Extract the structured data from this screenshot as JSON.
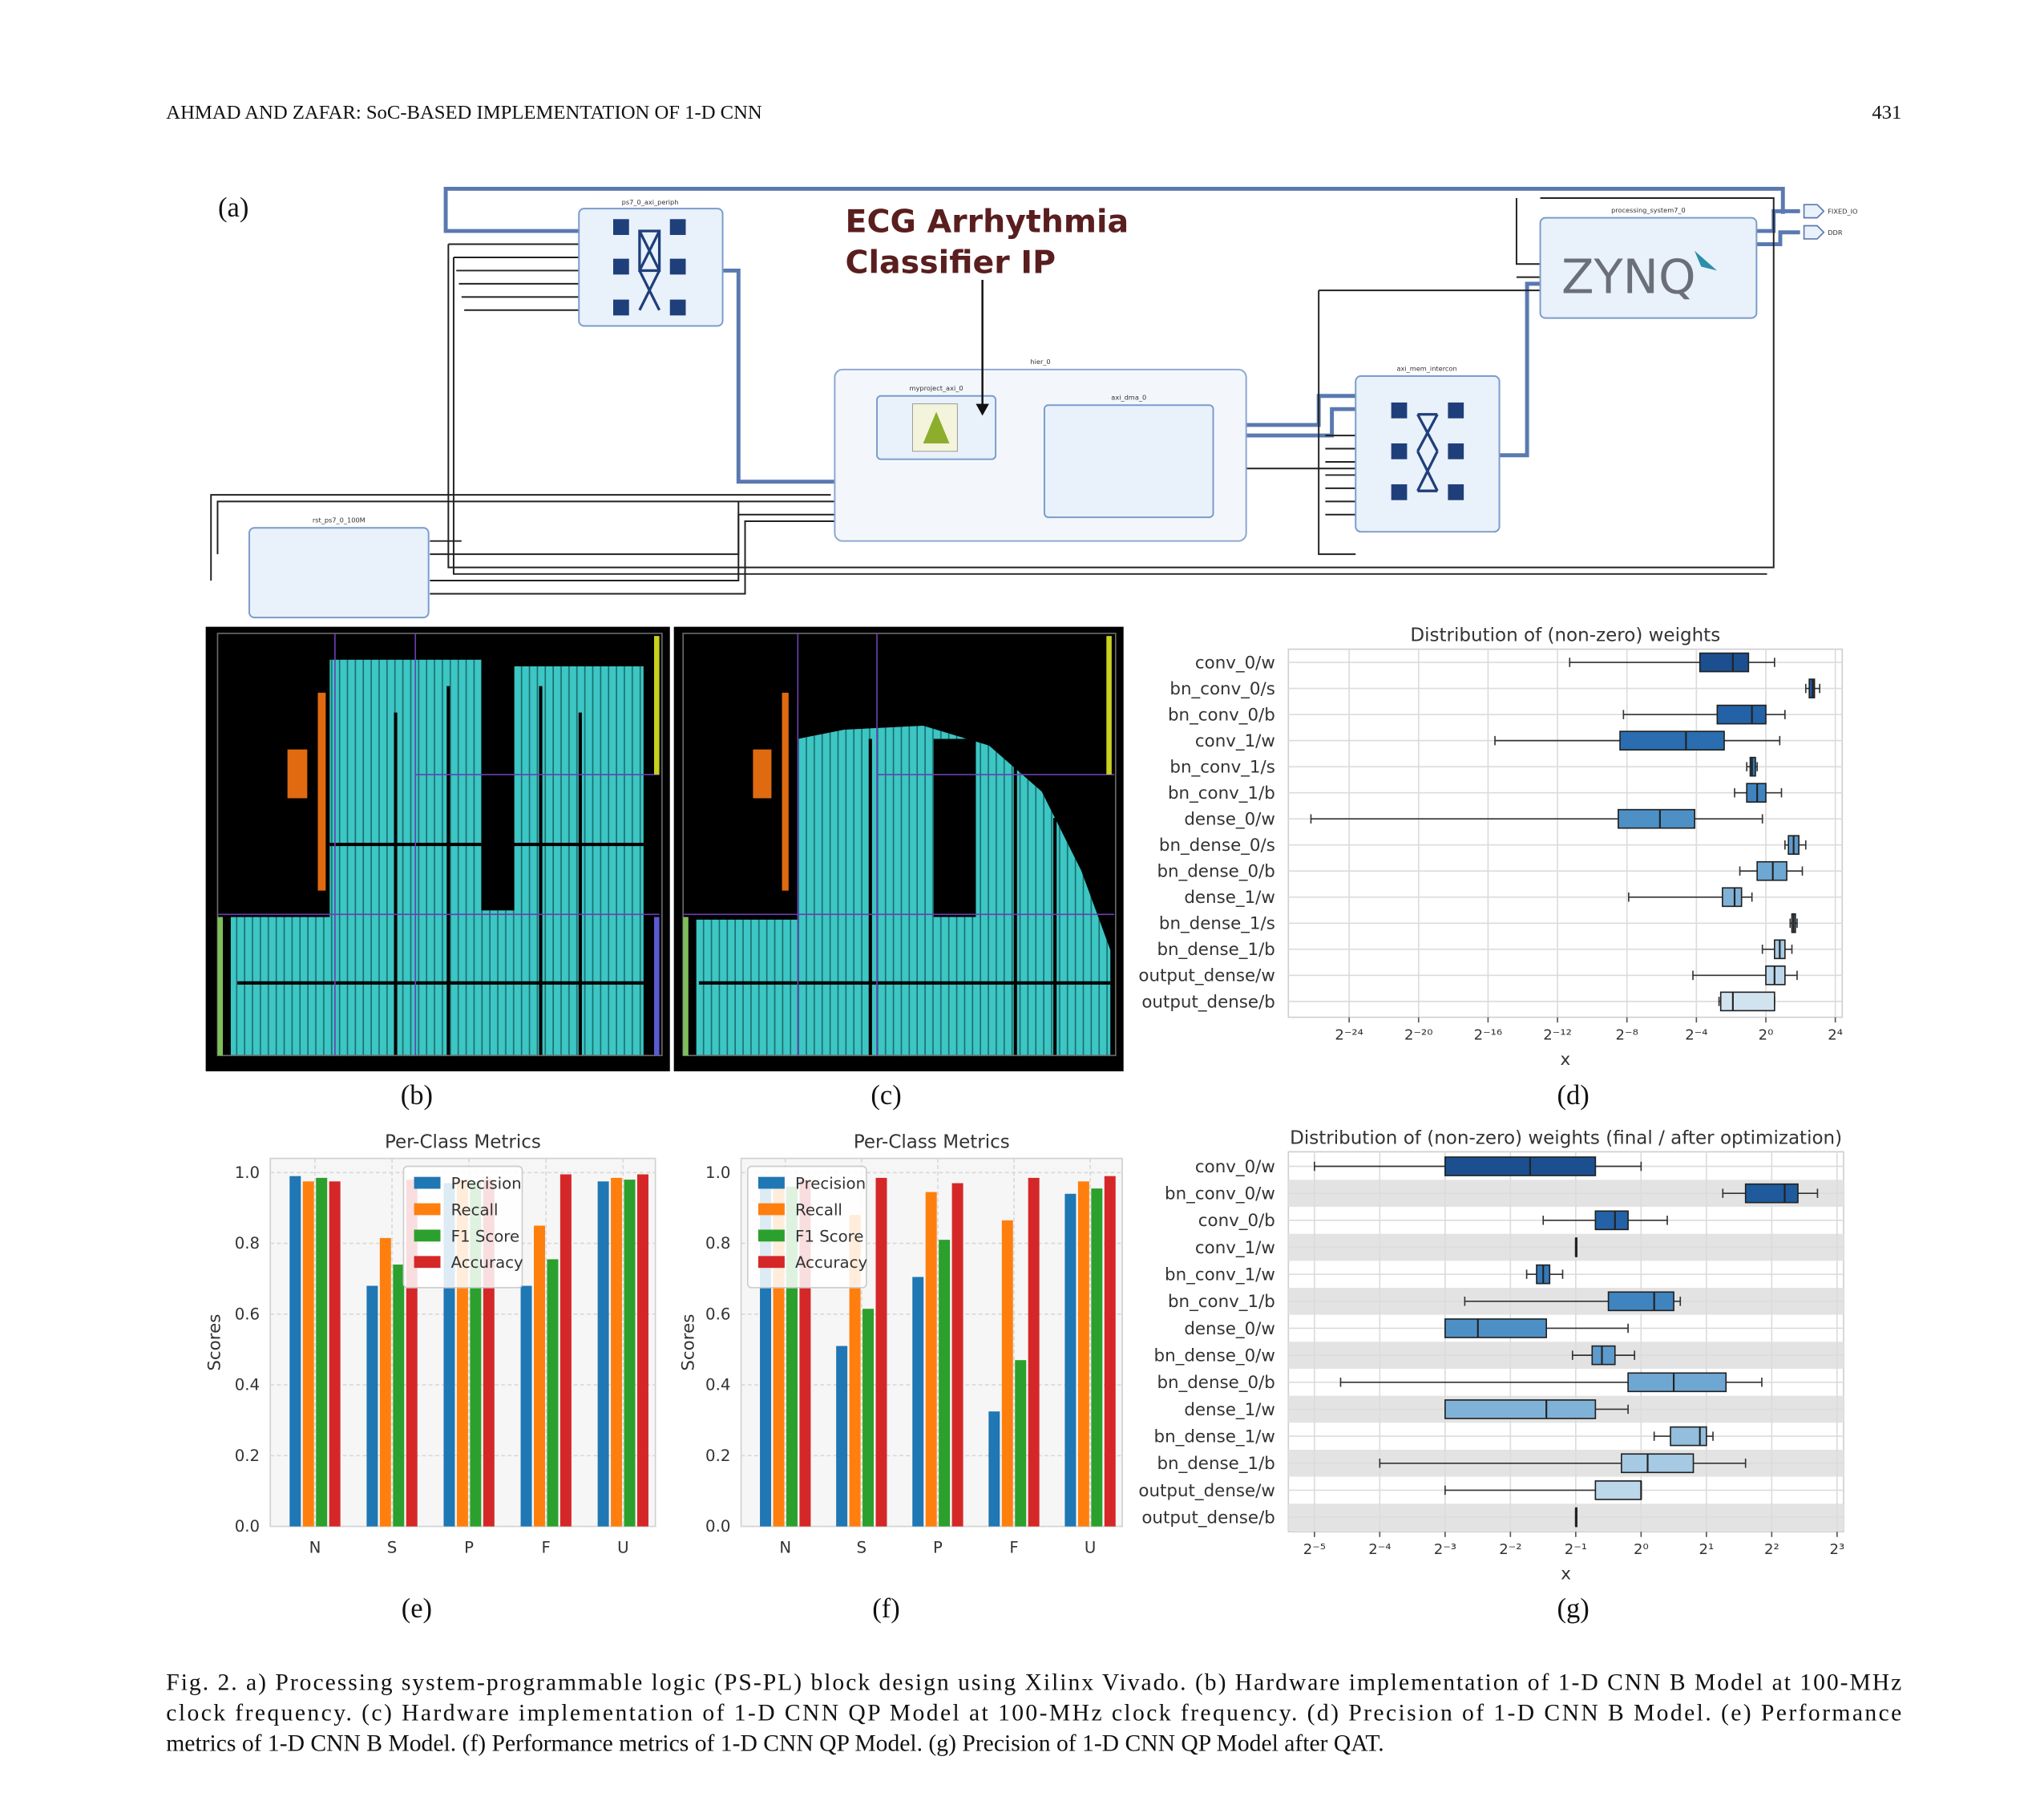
{
  "header": {
    "running_title": "AHMAD AND ZAFAR: SoC-BASED IMPLEMENTATION OF 1-D CNN",
    "page_number": "431"
  },
  "panel_labels": [
    "(a)",
    "(b)",
    "(c)",
    "(d)",
    "(e)",
    "(f)",
    "(g)"
  ],
  "diagram": {
    "callout_lines": [
      "ECG Arrhythmia",
      "Classifier IP"
    ],
    "blocks": [
      "ps7_0_axi_periph",
      "processing_system7_0",
      "hier_0",
      "myproject_axi_0",
      "axi_dma_0",
      "axi_mem_intercon",
      "rst_ps7_0_100M"
    ],
    "logo": "ZYNQ",
    "ports": [
      "FIXED_IO",
      "DDR"
    ]
  },
  "chart_data": [
    {
      "type": "box",
      "title": "Distribution of (non-zero) weights",
      "x_label": "x",
      "xscale": "log",
      "grid": true,
      "row_shading": false,
      "categories": [
        "conv_0/w",
        "bn_conv_0/s",
        "bn_conv_0/b",
        "conv_1/w",
        "bn_conv_1/s",
        "bn_conv_1/b",
        "dense_0/w",
        "bn_dense_0/s",
        "bn_dense_0/b",
        "dense_1/w",
        "bn_dense_1/s",
        "bn_dense_1/b",
        "output_dense/w",
        "output_dense/b"
      ],
      "whisker_low": [
        0.000397,
        4.92,
        0.0034,
        2.01e-05,
        0.4665,
        0.287,
        1.297e-08,
        2.144,
        0.354,
        0.00419,
        2.64,
        0.871,
        0.0544,
        0.154
      ],
      "q1": [
        0.0718,
        5.66,
        0.1436,
        0.00296,
        0.536,
        0.4665,
        0.00276,
        2.462,
        0.707,
        0.177,
        2.83,
        1.414,
        1,
        0.165
      ],
      "median": [
        0.268,
        6.5,
        0.574,
        0.04125,
        0.574,
        0.707,
        0.01458,
        3.03,
        1.32,
        0.287,
        3.03,
        1.741,
        1.414,
        0.268
      ],
      "q3": [
        0.5,
        6.96,
        1,
        0.1895,
        0.66,
        1,
        0.0583,
        3.73,
        2.3,
        0.379,
        3.25,
        2.144,
        2.144,
        1.414
      ],
      "whisker_high": [
        1.414,
        8.58,
        2.144,
        1.741,
        0.707,
        1.866,
        0.871,
        4.92,
        4.29,
        0.574,
        3.48,
        2.83,
        3.48,
        1.414
      ],
      "colors": [
        "#1b4f8f",
        "#1f5a9c",
        "#2362a6",
        "#2a6db0",
        "#3479b8",
        "#3f84bf",
        "#4d90c6",
        "#5d9bcc",
        "#6ea7d2",
        "#80b2d8",
        "#93bede",
        "#a7cae4",
        "#bcd6ea",
        "#d2e3f0"
      ],
      "xlim": [
        5.27e-09,
        21.1
      ],
      "xticks": [
        {
          "value": 5.960464477539063e-08,
          "label": "2⁻²⁴"
        },
        {
          "value": 9.5367431640625e-07,
          "label": "2⁻²⁰"
        },
        {
          "value": 1.52587890625e-05,
          "label": "2⁻¹⁶"
        },
        {
          "value": 0.000244140625,
          "label": "2⁻¹²"
        },
        {
          "value": 0.00390625,
          "label": "2⁻⁸"
        },
        {
          "value": 0.0625,
          "label": "2⁻⁴"
        },
        {
          "value": 1,
          "label": "2⁰"
        },
        {
          "value": 16,
          "label": "2⁴"
        }
      ]
    },
    {
      "type": "bar",
      "title": "Per-Class Metrics",
      "y_label": "Scores",
      "grid": true,
      "legend": "upper center",
      "categories": [
        "N",
        "S",
        "P",
        "F",
        "U"
      ],
      "series": [
        {
          "name": "Precision",
          "color": "#1f77b4",
          "values": [
            0.99,
            0.68,
            0.97,
            0.68,
            0.975
          ]
        },
        {
          "name": "Recall",
          "color": "#ff7f0e",
          "values": [
            0.975,
            0.815,
            0.98,
            0.85,
            0.985
          ]
        },
        {
          "name": "F1 Score",
          "color": "#2ca02c",
          "values": [
            0.985,
            0.74,
            0.975,
            0.755,
            0.98
          ]
        },
        {
          "name": "Accuracy",
          "color": "#d62728",
          "values": [
            0.975,
            0.98,
            0.98,
            0.995,
            0.995
          ]
        }
      ],
      "ylim": [
        0,
        1.04
      ],
      "yticks": [
        {
          "value": 0,
          "label": "0.0"
        },
        0.2,
        0.4,
        0.6,
        0.8,
        {
          "value": 1,
          "label": "1.0"
        }
      ]
    },
    {
      "type": "bar",
      "title": "Per-Class Metrics",
      "y_label": "Scores",
      "grid": true,
      "legend": "upper left",
      "categories": [
        "N",
        "S",
        "P",
        "F",
        "U"
      ],
      "series": [
        {
          "name": "Precision",
          "color": "#1f77b4",
          "values": [
            0.97,
            0.51,
            0.705,
            0.325,
            0.94
          ]
        },
        {
          "name": "Recall",
          "color": "#ff7f0e",
          "values": [
            0.96,
            0.88,
            0.945,
            0.865,
            0.975
          ]
        },
        {
          "name": "F1 Score",
          "color": "#2ca02c",
          "values": [
            0.96,
            0.615,
            0.81,
            0.47,
            0.955
          ]
        },
        {
          "name": "Accuracy",
          "color": "#d62728",
          "values": [
            0.98,
            0.985,
            0.97,
            0.985,
            0.99
          ]
        }
      ],
      "ylim": [
        0,
        1.04
      ],
      "yticks": [
        {
          "value": 0,
          "label": "0.0"
        },
        0.2,
        0.4,
        0.6,
        0.8,
        {
          "value": 1,
          "label": "1.0"
        }
      ]
    },
    {
      "type": "box",
      "title": "Distribution of (non-zero) weights (final / after optimization)",
      "x_label": "x",
      "xscale": "log",
      "grid": true,
      "row_shading": true,
      "categories": [
        "conv_0/w",
        "bn_conv_0/w",
        "conv_0/b",
        "conv_1/w",
        "bn_conv_1/w",
        "bn_conv_1/b",
        "dense_0/w",
        "bn_dense_0/w",
        "bn_dense_0/b",
        "dense_1/w",
        "bn_dense_1/w",
        "bn_dense_1/b",
        "output_dense/w",
        "output_dense/b"
      ],
      "whisker_low": [
        0.03125,
        2.38,
        0.354,
        0.5,
        0.297,
        0.154,
        0.125,
        0.483,
        0.04125,
        0.125,
        1.149,
        0.0625,
        0.125,
        0.5
      ],
      "q1": [
        0.125,
        3.03,
        0.616,
        0.5,
        0.33,
        0.707,
        0.125,
        0.595,
        0.871,
        0.125,
        1.366,
        0.812,
        0.616,
        0.5
      ],
      "median": [
        0.308,
        4.59,
        0.758,
        0.5,
        0.354,
        1.149,
        0.177,
        0.66,
        1.414,
        0.366,
        1.866,
        1.072,
        1,
        0.5
      ],
      "q3": [
        0.616,
        5.28,
        0.871,
        0.5,
        0.379,
        1.414,
        0.366,
        0.758,
        2.462,
        0.616,
        2,
        1.741,
        1,
        0.5
      ],
      "whisker_high": [
        1,
        6.5,
        1.32,
        0.5,
        0.435,
        1.516,
        0.871,
        0.933,
        3.6,
        0.871,
        2.144,
        3.03,
        1,
        0.5
      ],
      "colors": [
        "#1b4f8f",
        "#1f5a9c",
        "#2362a6",
        "#2a6db0",
        "#3479b8",
        "#3f84bf",
        "#4d90c6",
        "#5d9bcc",
        "#6ea7d2",
        "#80b2d8",
        "#93bede",
        "#a7cae4",
        "#bcd6ea",
        "#d2e3f0"
      ],
      "xlim": [
        0.0237,
        8.57
      ],
      "xticks": [
        {
          "value": 0.03125,
          "label": "2⁻⁵"
        },
        {
          "value": 0.0625,
          "label": "2⁻⁴"
        },
        {
          "value": 0.125,
          "label": "2⁻³"
        },
        {
          "value": 0.25,
          "label": "2⁻²"
        },
        {
          "value": 0.5,
          "label": "2⁻¹"
        },
        {
          "value": 1,
          "label": "2⁰"
        },
        {
          "value": 2,
          "label": "2¹"
        },
        {
          "value": 4,
          "label": "2²"
        },
        {
          "value": 8,
          "label": "2³"
        }
      ]
    }
  ],
  "caption": {
    "lines": [
      "Fig. 2.   a) Processing system-programmable logic (PS-PL) block design using Xilinx Vivado. (b) Hardware implementation of 1-D CNN B Model at 100-MHz",
      "clock frequency. (c) Hardware implementation of 1-D CNN QP Model at 100-MHz clock frequency. (d) Precision of 1-D CNN B Model. (e) Performance",
      "metrics of 1-D CNN B Model. (f) Performance metrics of 1-D CNN QP Model. (g) Precision of 1-D CNN QP Model after QAT."
    ]
  }
}
